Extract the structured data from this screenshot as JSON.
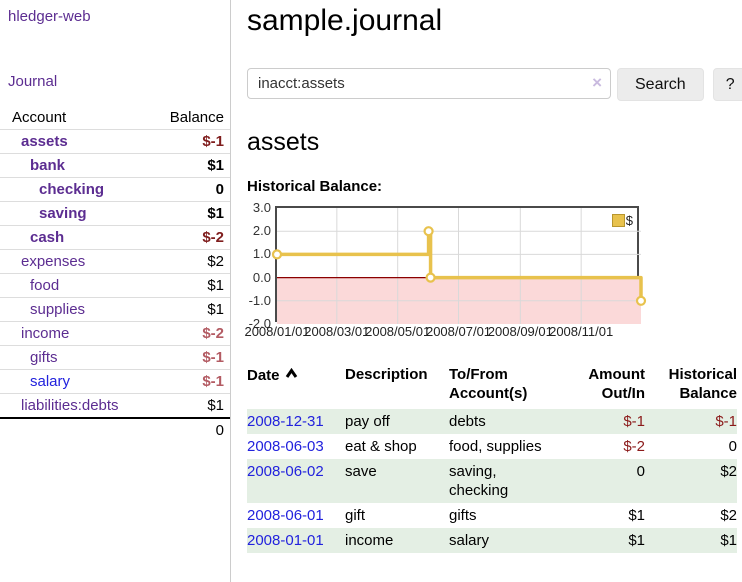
{
  "colors": {
    "link_purple": "#5c2d91",
    "link_blue": "#2222dd",
    "negative_dark": "#7f1d1d",
    "negative_light": "#b35b63",
    "register_negative": "#8b1a1a",
    "row_stripe_green": "#e4efe4",
    "chart_gold": "#e8c24d",
    "chart_pink": "#fbd9d9",
    "chart_zero_line": "#8b0000"
  },
  "sidebar": {
    "brand": "hledger-web",
    "journal_link": "Journal",
    "accounts_table": {
      "headers": {
        "account": "Account",
        "balance": "Balance"
      },
      "rows": [
        {
          "name": "assets",
          "depth": 1,
          "bold": true,
          "link_color": "purple",
          "balance": "$-1",
          "balance_style": "neg-dark"
        },
        {
          "name": "bank",
          "depth": 2,
          "bold": true,
          "link_color": "purple",
          "balance": "$1",
          "balance_style": "pos"
        },
        {
          "name": "checking",
          "depth": 3,
          "bold": true,
          "link_color": "purple",
          "balance": "0",
          "balance_style": "pos"
        },
        {
          "name": "saving",
          "depth": 3,
          "bold": true,
          "link_color": "purple",
          "balance": "$1",
          "balance_style": "pos"
        },
        {
          "name": "cash",
          "depth": 2,
          "bold": true,
          "link_color": "purple",
          "balance": "$-2",
          "balance_style": "neg-dark"
        },
        {
          "name": "expenses",
          "depth": 1,
          "bold": false,
          "link_color": "purple",
          "balance": "$2",
          "balance_style": "pos"
        },
        {
          "name": "food",
          "depth": 2,
          "bold": false,
          "link_color": "purple",
          "balance": "$1",
          "balance_style": "pos"
        },
        {
          "name": "supplies",
          "depth": 2,
          "bold": false,
          "link_color": "purple",
          "balance": "$1",
          "balance_style": "pos"
        },
        {
          "name": "income",
          "depth": 1,
          "bold": false,
          "link_color": "purple",
          "balance": "$-2",
          "balance_style": "neg-light"
        },
        {
          "name": "gifts",
          "depth": 2,
          "bold": false,
          "link_color": "purple",
          "balance": "$-1",
          "balance_style": "neg-light"
        },
        {
          "name": "salary",
          "depth": 2,
          "bold": false,
          "link_color": "blue",
          "balance": "$-1",
          "balance_style": "neg-light"
        },
        {
          "name": "liabilities:debts",
          "depth": 1,
          "bold": false,
          "link_color": "purple",
          "balance": "$1",
          "balance_style": "pos"
        }
      ],
      "total": "0"
    }
  },
  "header": {
    "title": "sample.journal"
  },
  "search": {
    "value": "inacct:assets",
    "clear_icon": "×",
    "button_label": "Search",
    "help_label": "?"
  },
  "account_page": {
    "heading": "assets",
    "chart_label": "Historical Balance:"
  },
  "chart_data": {
    "type": "line",
    "step": true,
    "legend": [
      {
        "label": "$",
        "color": "#e8c24d"
      }
    ],
    "ylim": [
      -2.0,
      3.0
    ],
    "yticks": [
      3.0,
      2.0,
      1.0,
      0.0,
      -1.0,
      -2.0
    ],
    "xticks": [
      {
        "label": "2008/01/01",
        "day": 0
      },
      {
        "label": "2008/03/01",
        "day": 60
      },
      {
        "label": "2008/05/01",
        "day": 121
      },
      {
        "label": "2008/07/01",
        "day": 182
      },
      {
        "label": "2008/09/01",
        "day": 244
      },
      {
        "label": "2008/11/01",
        "day": 305
      }
    ],
    "x_range_days": 365,
    "grid": true,
    "legend_position": "top-right",
    "series": [
      {
        "name": "$",
        "points": [
          {
            "date": "2008-01-01",
            "day": 0,
            "value": 1.0
          },
          {
            "date": "2008-06-01",
            "day": 152,
            "value": 2.0
          },
          {
            "date": "2008-06-03",
            "day": 154,
            "value": 0.0
          },
          {
            "date": "2008-12-31",
            "day": 365,
            "value": -1.0
          }
        ],
        "color": "#e8c24d"
      }
    ],
    "negative_region_fill": "#fbd9d9",
    "zero_line_color": "#8b0000",
    "grid_color": "#d9d9d9"
  },
  "register": {
    "columns": [
      {
        "lines": [
          "Date"
        ],
        "align": "left",
        "sort_icon": true
      },
      {
        "lines": [
          "Description"
        ],
        "align": "left",
        "sort_icon": false
      },
      {
        "lines": [
          "To/From",
          "Account(s)"
        ],
        "align": "left",
        "sort_icon": false
      },
      {
        "lines": [
          "Amount",
          "Out/In"
        ],
        "align": "right",
        "sort_icon": false
      },
      {
        "lines": [
          "Historical",
          "Balance"
        ],
        "align": "right",
        "sort_icon": false
      }
    ],
    "rows": [
      {
        "date": "2008-12-31",
        "description": "pay off",
        "accounts": "debts",
        "amount": "$-1",
        "amount_negative": true,
        "balance": "$-1",
        "balance_negative": true,
        "striped": true
      },
      {
        "date": "2008-06-03",
        "description": "eat & shop",
        "accounts": "food, supplies",
        "amount": "$-2",
        "amount_negative": true,
        "balance": "0",
        "balance_negative": false,
        "striped": false
      },
      {
        "date": "2008-06-02",
        "description": "save",
        "accounts": "saving, checking",
        "amount": "0",
        "amount_negative": false,
        "balance": "$2",
        "balance_negative": false,
        "striped": true
      },
      {
        "date": "2008-06-01",
        "description": "gift",
        "accounts": "gifts",
        "amount": "$1",
        "amount_negative": false,
        "balance": "$2",
        "balance_negative": false,
        "striped": false
      },
      {
        "date": "2008-01-01",
        "description": "income",
        "accounts": "salary",
        "amount": "$1",
        "amount_negative": false,
        "balance": "$1",
        "balance_negative": false,
        "striped": true
      }
    ]
  }
}
